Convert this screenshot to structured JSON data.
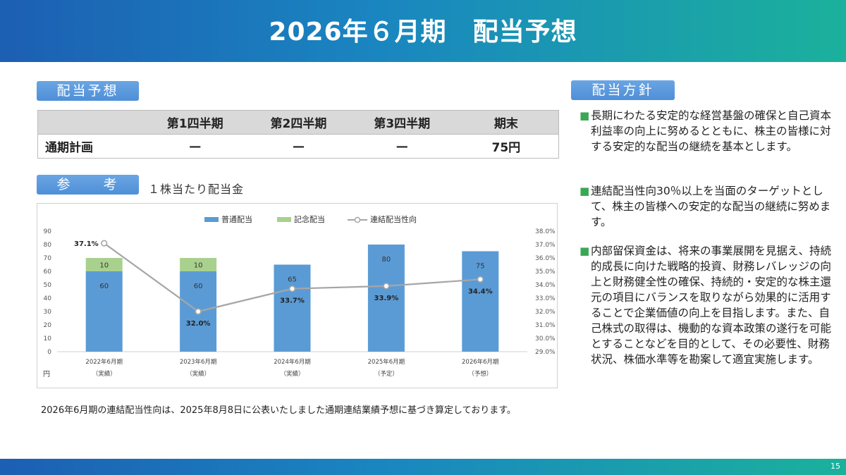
{
  "header": {
    "title": "2026年６月期　配当予想"
  },
  "forecast": {
    "pill": "配当予想",
    "columns": [
      "",
      "第1四半期",
      "第2四半期",
      "第3四半期",
      "期末"
    ],
    "row": [
      "通期計画",
      "—",
      "—",
      "—",
      "75円"
    ]
  },
  "reference": {
    "pill": "参　　考",
    "caption": "１株当たり配当金"
  },
  "policy": {
    "pill": "配当方針",
    "bullet": "■",
    "items": [
      "長期にわたる安定的な経営基盤の確保と自己資本利益率の向上に努めるとともに、株主の皆様に対する安定的な配当の継続を基本とします。",
      "連結配当性向30％以上を当面のターゲットとして、株主の皆様への安定的な配当の継続に努めます。",
      "内部留保資金は、将来の事業展開を見据え、持続的成長に向けた戦略的投資、財務レバレッジの向上と財務健全性の確保、持続的・安定的な株主還元の項目にバランスを取りながら効果的に活用することで企業価値の向上を目指します。また、自己株式の取得は、機動的な資本政策の遂行を可能とすることなどを目的として、その必要性、財務状況、株価水準等を勘案して適宜実施します。"
    ]
  },
  "note": "2026年6月期の連結配当性向は、2025年8月8日に公表いたしました通期連結業績予想に基づき算定しております。",
  "footer": {
    "page": "15"
  },
  "chart_data": {
    "type": "bar",
    "categories": [
      "2022年6月期",
      "2023年6月期",
      "2024年6月期",
      "2025年6月期",
      "2026年6月期"
    ],
    "category_sub": [
      "（実績）",
      "（実績）",
      "（実績）",
      "（予定）",
      "（予想）"
    ],
    "series": [
      {
        "name": "普通配当",
        "type": "bar",
        "stack": "dividend",
        "color": "#5b9bd5",
        "values": [
          60,
          60,
          65,
          80,
          75
        ]
      },
      {
        "name": "記念配当",
        "type": "bar",
        "stack": "dividend",
        "color": "#a9d18e",
        "values": [
          10,
          10,
          0,
          0,
          0
        ]
      },
      {
        "name": "連結配当性向",
        "type": "line",
        "axis": "right",
        "color": "#a6a6a6",
        "values": [
          37.1,
          32.0,
          33.7,
          33.9,
          34.4
        ]
      }
    ],
    "line_labels": [
      "37.1%",
      "32.0%",
      "33.7%",
      "33.9%",
      "34.4%"
    ],
    "ylim": [
      0,
      90
    ],
    "yticks": [
      0,
      10,
      20,
      30,
      40,
      50,
      60,
      70,
      80,
      90
    ],
    "y2lim": [
      29.0,
      38.0
    ],
    "y2ticks": [
      "29.0%",
      "30.0%",
      "31.0%",
      "32.0%",
      "33.0%",
      "34.0%",
      "35.0%",
      "36.0%",
      "37.0%",
      "38.0%"
    ],
    "yunit": "円",
    "legend_position": "top-center"
  }
}
